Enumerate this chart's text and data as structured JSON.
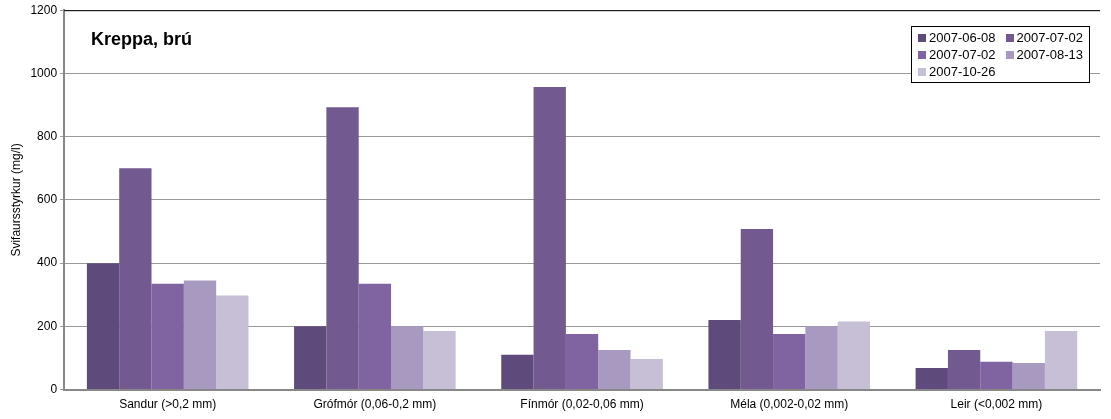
{
  "chart_data": {
    "type": "bar",
    "title": "Kreppa, brú",
    "ylabel": "Svifaursstyrkur (mg/l)",
    "categories": [
      "Sandur (>0,2 mm)",
      "Grófmór (0,06-0,2 mm)",
      "Fínmór (0,02-0,06 mm)",
      "Méla (0,002-0,02 mm)",
      "Leir (<0,002 mm)"
    ],
    "series": [
      {
        "name": "2007-06-08",
        "color": "#5f4b7b",
        "values": [
          400,
          200,
          110,
          220,
          68
        ]
      },
      {
        "name": "2007-07-02",
        "color": "#725a91",
        "values": [
          700,
          893,
          957,
          508,
          125
        ]
      },
      {
        "name": "2007-07-02",
        "color": "#8064a2",
        "values": [
          335,
          335,
          176,
          176,
          88
        ]
      },
      {
        "name": "2007-08-13",
        "color": "#a899c0",
        "values": [
          345,
          200,
          125,
          200,
          84
        ]
      },
      {
        "name": "2007-10-26",
        "color": "#c7bfd6",
        "values": [
          298,
          185,
          97,
          215,
          185
        ]
      }
    ],
    "ylim": [
      0,
      1200
    ],
    "yticks": [
      0,
      200,
      400,
      600,
      800,
      1000,
      1200
    ],
    "grid": "y",
    "legend": "top right"
  }
}
